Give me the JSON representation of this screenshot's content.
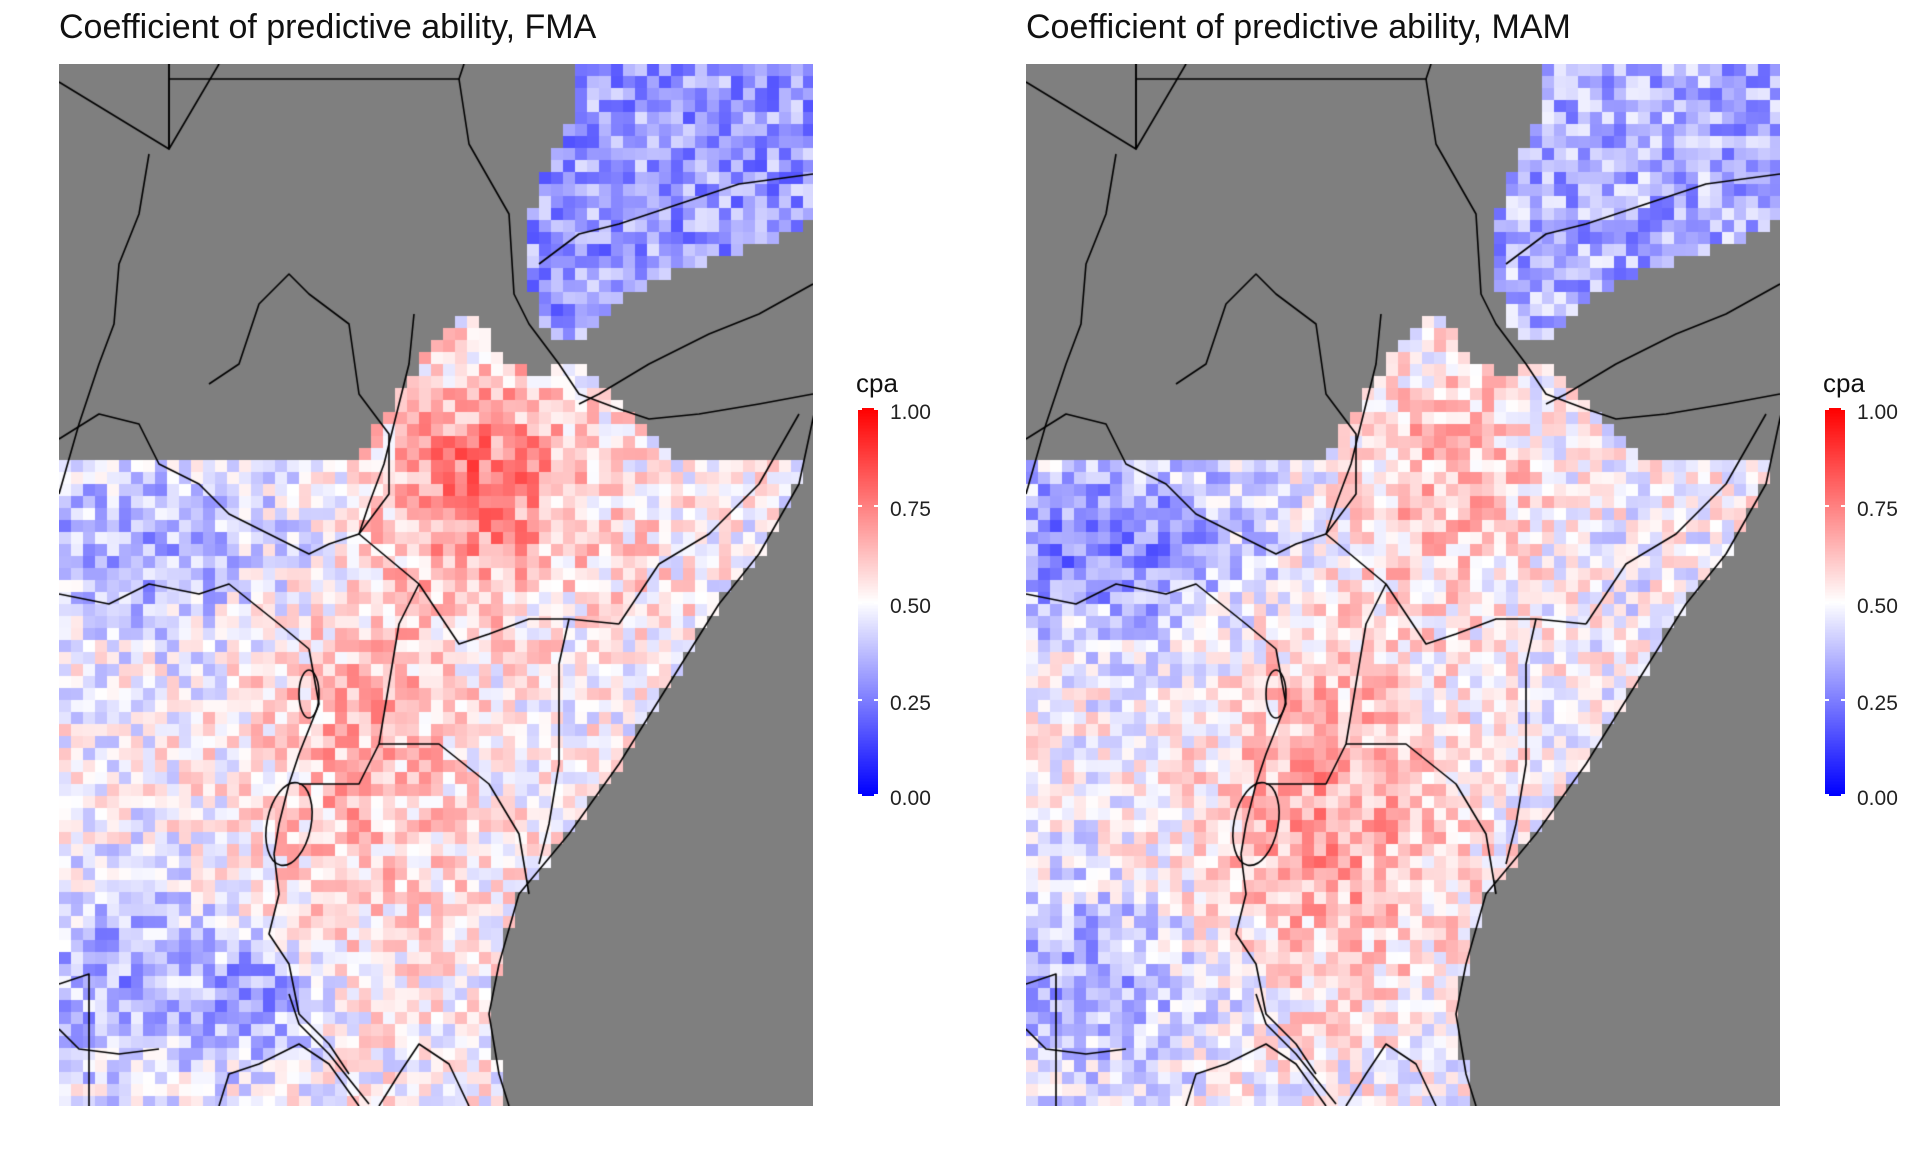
{
  "panels": [
    {
      "id": "fma",
      "title": "Coefficient of predictive ability, FMA",
      "season_seed": 11,
      "legend": {
        "title": "cpa",
        "ticks": [
          "1.00",
          "0.75",
          "0.50",
          "0.25",
          "0.00"
        ],
        "tick_values": [
          1.0,
          0.75,
          0.5,
          0.25,
          0.0
        ]
      }
    },
    {
      "id": "mam",
      "title": "Coefficient of predictive ability, MAM",
      "season_seed": 29,
      "legend": {
        "title": "cpa",
        "ticks": [
          "1.00",
          "0.75",
          "0.50",
          "0.25",
          "0.00"
        ],
        "tick_values": [
          1.0,
          0.75,
          0.5,
          0.25,
          0.0
        ]
      }
    }
  ],
  "colors": {
    "low": "#0000ff",
    "mid": "#ffffff",
    "high": "#ff0000",
    "missing": "#7f7f7f",
    "borders": "#000000"
  },
  "scale": {
    "min": 0.0,
    "max": 1.0,
    "midpoint": 0.5
  }
}
